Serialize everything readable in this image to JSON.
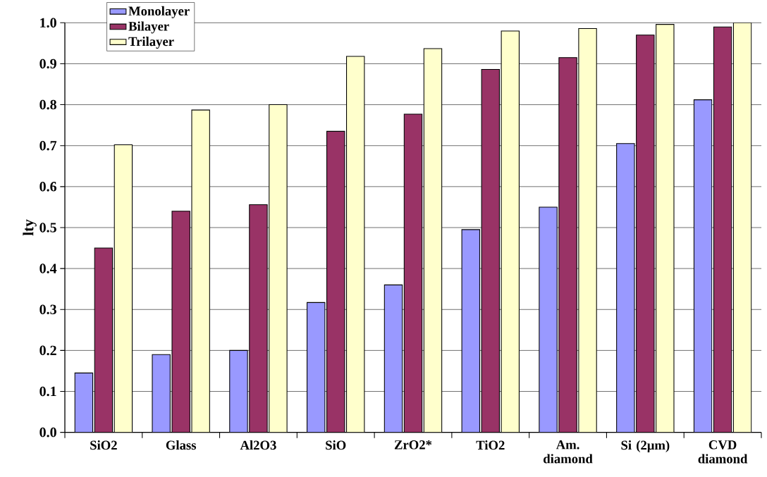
{
  "chart_data": {
    "type": "bar",
    "ylabel": "lty",
    "categories": [
      "SiO2",
      "Glass",
      "Al2O3",
      "SiO",
      "ZrO2*",
      "TiO2",
      "Am. diamond",
      "Si  (2μm)",
      "CVD diamond"
    ],
    "series": [
      {
        "name": "Monolayer",
        "color": "#9999ff",
        "values": [
          0.145,
          0.19,
          0.2,
          0.317,
          0.36,
          0.495,
          0.55,
          0.705,
          0.812
        ]
      },
      {
        "name": "Bilayer",
        "color": "#993366",
        "values": [
          0.45,
          0.54,
          0.556,
          0.735,
          0.777,
          0.886,
          0.915,
          0.97,
          0.99
        ]
      },
      {
        "name": "Trilayer",
        "color": "#ffffcc",
        "values": [
          0.702,
          0.787,
          0.8,
          0.918,
          0.937,
          0.98,
          0.986,
          0.996,
          1.0
        ]
      }
    ],
    "ylim": [
      0,
      1.0
    ],
    "yticks": [
      {
        "value": 0,
        "label": "0.0"
      },
      0.1,
      0.2,
      0.3,
      0.4,
      0.5,
      0.6,
      0.7,
      0.8,
      0.9,
      {
        "value": 1.0,
        "label": "1.0"
      }
    ],
    "grid": "y",
    "legend": "top left"
  }
}
